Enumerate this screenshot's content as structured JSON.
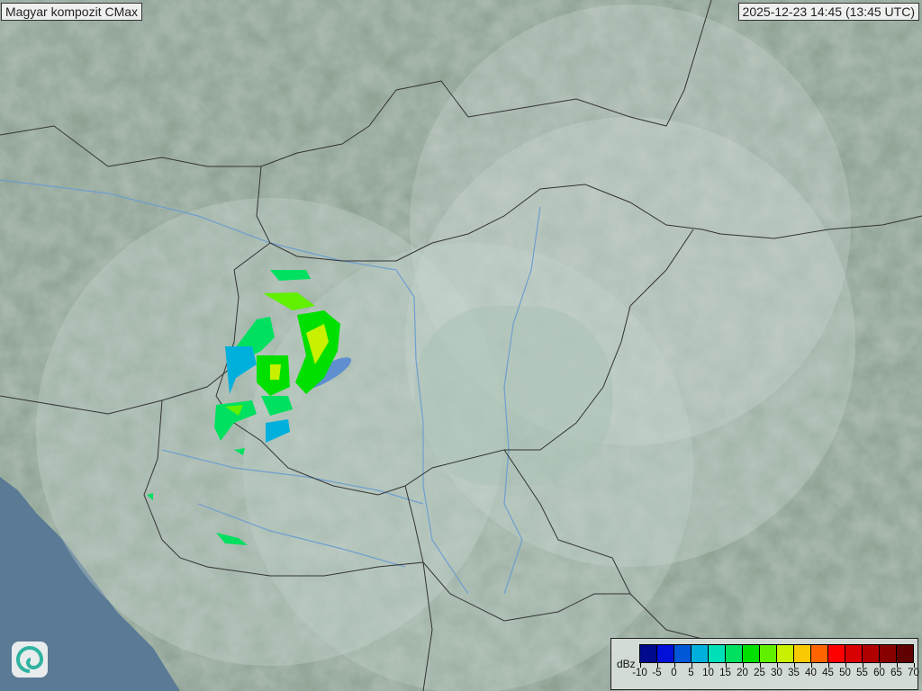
{
  "header": {
    "title": "Magyar kompozit  CMax",
    "timestamp": "2025-12-23 14:45 (13:45 UTC)"
  },
  "logo": {
    "icon": "swirl-logo-icon"
  },
  "legend": {
    "unit": "dBz",
    "ticks": [
      "-10",
      "-5",
      "0",
      "5",
      "10",
      "15",
      "20",
      "25",
      "30",
      "35",
      "40",
      "45",
      "50",
      "55",
      "60",
      "65",
      "70"
    ],
    "colors": [
      "#000a8c",
      "#0010d8",
      "#0058d8",
      "#00b0dc",
      "#00e0b8",
      "#00e060",
      "#00e000",
      "#60f000",
      "#c8f000",
      "#f8c800",
      "#ff6400",
      "#ff0000",
      "#d80000",
      "#b00000",
      "#880000",
      "#600000"
    ]
  },
  "map": {
    "land_color": "#8fa395",
    "sea_color": "#5a7a95",
    "coverage_color": "#c8d8d0",
    "border_color": "#333333",
    "river_color": "#6f9fcf"
  }
}
